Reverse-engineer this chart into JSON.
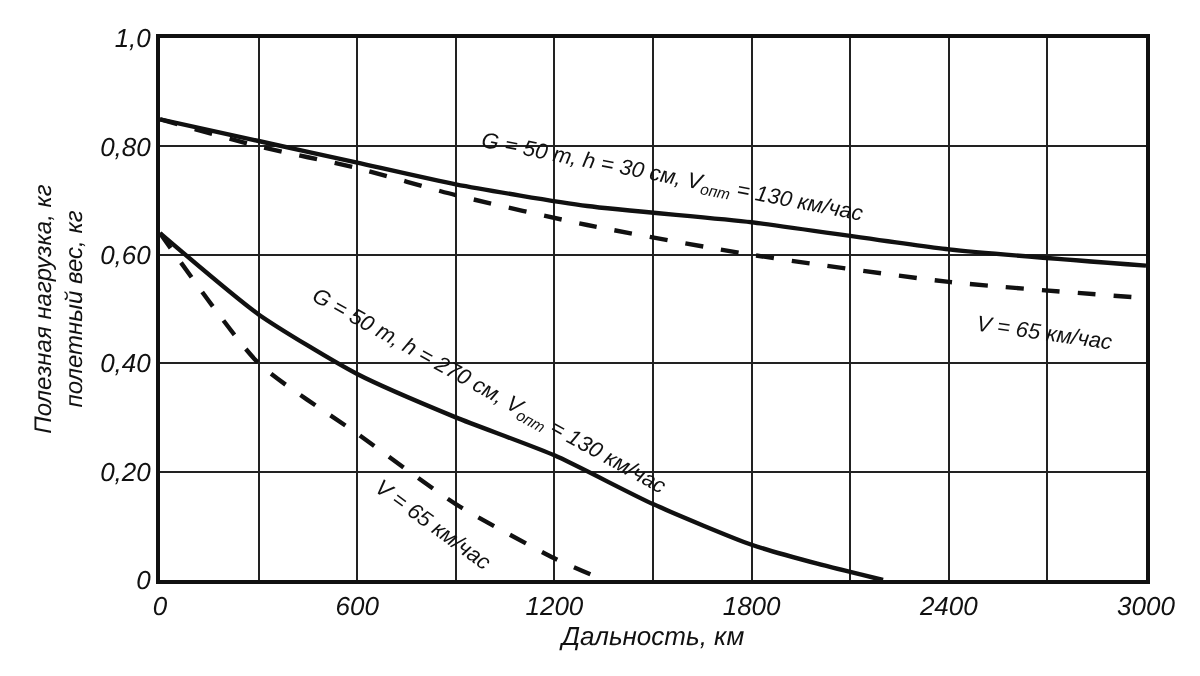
{
  "chart_data": {
    "type": "line",
    "xlabel": "Дальность, км",
    "ylabel": "Полезная нагрузка, кг\nполетный вес, кг",
    "series": [
      {
        "color": "#111111",
        "line_style": "solid",
        "x": [
          0,
          300,
          600,
          900,
          1300,
          1800,
          2400,
          3000
        ],
        "values": [
          0.85,
          0.81,
          0.77,
          0.73,
          0.69,
          0.66,
          0.61,
          0.58
        ]
      },
      {
        "color": "#111111",
        "line_style": "dashed",
        "x": [
          0,
          300,
          600,
          900,
          1300,
          1800,
          2400,
          3000
        ],
        "values": [
          0.85,
          0.8,
          0.76,
          0.71,
          0.655,
          0.6,
          0.55,
          0.52
        ]
      },
      {
        "color": "#111111",
        "line_style": "solid",
        "x": [
          0,
          300,
          600,
          900,
          1200,
          1500,
          1800,
          2000,
          2200
        ],
        "values": [
          0.64,
          0.49,
          0.38,
          0.3,
          0.23,
          0.14,
          0.065,
          0.03,
          0
        ]
      },
      {
        "color": "#111111",
        "line_style": "dashed",
        "x": [
          0,
          300,
          600,
          900,
          1200,
          1350
        ],
        "values": [
          0.64,
          0.4,
          0.27,
          0.14,
          0.04,
          0
        ]
      }
    ],
    "xlim": [
      0,
      3000
    ],
    "ylim": [
      0,
      1.0
    ],
    "xticks": [
      0,
      {
        "value": 300,
        "label": null
      },
      600,
      {
        "value": 900,
        "label": null
      },
      1200,
      {
        "value": 1500,
        "label": null
      },
      1800,
      {
        "value": 2100,
        "label": null
      },
      2400,
      {
        "value": 2700,
        "label": null
      },
      3000
    ],
    "yticks": [
      0,
      {
        "value": 0.2,
        "label": "0,20"
      },
      {
        "value": 0.4,
        "label": "0,40"
      },
      {
        "value": 0.6,
        "label": "0,60"
      },
      {
        "value": 0.8,
        "label": "0,80"
      },
      {
        "value": 1.0,
        "label": "1,0"
      }
    ],
    "grid": true,
    "marker": "none",
    "annotations": [
      "G = 50 т, h = 30 см, V$_{опт}$ = 130 км/час",
      "V = 65 км/час",
      "G = 50 т, h = 270 см, V$_{опт}$ = 130 км/час",
      "V = 65 км/час"
    ]
  }
}
